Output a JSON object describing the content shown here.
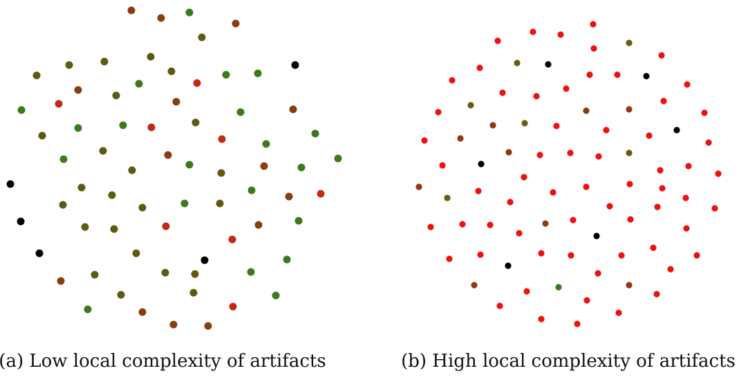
{
  "figure": {
    "panels": [
      {
        "caption": "(a) Low local complexity of artifacts"
      },
      {
        "caption": "(b) High local complexity of artifacts"
      }
    ]
  }
}
